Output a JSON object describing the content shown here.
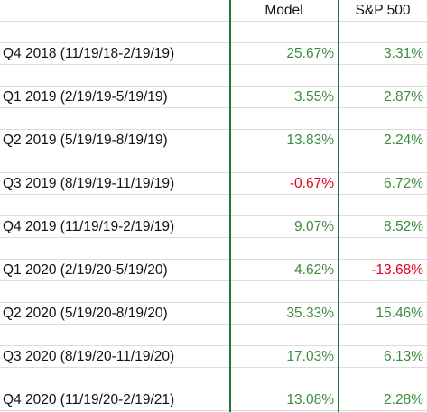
{
  "columns": {
    "model": "Model",
    "sp500": "S&P 500"
  },
  "rows": [
    {
      "label": "Q4 2018 (11/19/18-2/19/19)",
      "model": "25.67%",
      "sp500": "3.31%"
    },
    {
      "label": "Q1 2019 (2/19/19-5/19/19)",
      "model": "3.55%",
      "sp500": "2.87%"
    },
    {
      "label": "Q2 2019 (5/19/19-8/19/19)",
      "model": "13.83%",
      "sp500": "2.24%"
    },
    {
      "label": "Q3 2019 (8/19/19-11/19/19)",
      "model": "-0.67%",
      "sp500": "6.72%"
    },
    {
      "label": "Q4 2019 (11/19/19-2/19/19)",
      "model": "9.07%",
      "sp500": "8.52%"
    },
    {
      "label": "Q1 2020 (2/19/20-5/19/20)",
      "model": "4.62%",
      "sp500": "-13.68%"
    },
    {
      "label": "Q2 2020 (5/19/20-8/19/20)",
      "model": "35.33%",
      "sp500": "15.46%"
    },
    {
      "label": "Q3 2020 (8/19/20-11/19/20)",
      "model": "17.03%",
      "sp500": "6.13%"
    },
    {
      "label": "Q4 2020 (11/19/20-2/19/21)",
      "model": "13.08%",
      "sp500": "2.28%"
    }
  ],
  "colors": {
    "positive": "#3c8c3c",
    "negative": "#e3001b",
    "column_separator": "#1f7a3a",
    "gridline": "#dcdcdc"
  }
}
